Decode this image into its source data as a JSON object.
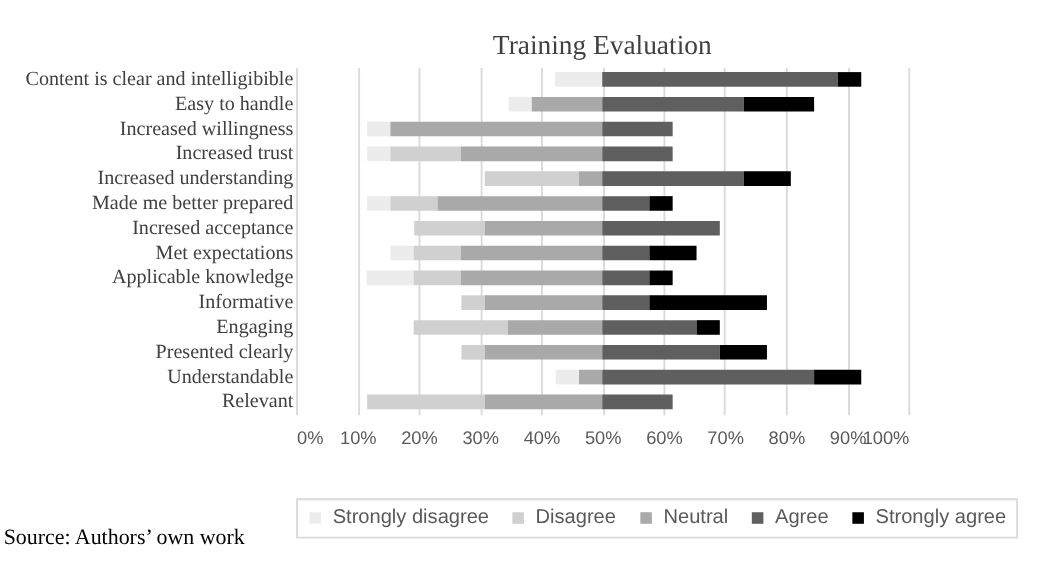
{
  "chart_data": {
    "type": "bar",
    "title": "Training Evaluation",
    "orientation": "horizontal",
    "categories": [
      "Content is clear and intelligibible",
      "Easy to handle",
      "Increased willingness",
      "Increased trust",
      "Increased understanding",
      "Made me better prepared",
      "Incresed acceptance",
      "Met expectations",
      "Applicable knowledge",
      "Informative",
      "Engaging",
      "Presented clearly",
      "Understandable",
      "Relevant"
    ],
    "series": [
      {
        "name": "Strongly disagree",
        "color": "#ececec",
        "values": [
          7.7,
          3.8,
          3.8,
          3.8,
          null,
          3.8,
          null,
          3.8,
          7.7,
          null,
          null,
          null,
          3.8,
          null
        ],
        "base": [
          42.3,
          34.7,
          11.6,
          11.6,
          null,
          11.6,
          null,
          15.4,
          11.5,
          null,
          null,
          null,
          42.4,
          null
        ]
      },
      {
        "name": "Disagree",
        "color": "#d0d0d0",
        "values": [
          null,
          null,
          null,
          11.5,
          15.4,
          7.7,
          11.5,
          7.7,
          7.7,
          3.8,
          15.4,
          3.8,
          null,
          19.2
        ],
        "base": [
          null,
          null,
          null,
          15.4,
          30.8,
          15.4,
          19.3,
          19.2,
          19.2,
          27.0,
          19.2,
          27.0,
          null,
          11.6
        ]
      },
      {
        "name": "Neutral",
        "color": "#a9a9a9",
        "values": [
          null,
          11.5,
          34.6,
          23.1,
          3.8,
          26.9,
          19.2,
          23.1,
          23.1,
          19.2,
          15.4,
          19.2,
          3.8,
          19.2
        ],
        "base": [
          null,
          38.5,
          15.4,
          26.9,
          46.2,
          23.1,
          30.8,
          26.9,
          26.9,
          30.8,
          34.6,
          30.8,
          46.2,
          30.8
        ]
      },
      {
        "name": "Agree",
        "color": "#5f5f5f",
        "values": [
          38.5,
          23.1,
          11.5,
          11.5,
          23.1,
          7.7,
          19.2,
          7.7,
          7.7,
          7.7,
          15.4,
          19.2,
          34.6,
          11.5
        ],
        "base": [
          50.0,
          50.0,
          50.0,
          50.0,
          50.0,
          50.0,
          50.0,
          50.0,
          50.0,
          50.0,
          50.0,
          50.0,
          50.0,
          50.0
        ]
      },
      {
        "name": "Strongly agree",
        "color": "#000000",
        "values": [
          3.8,
          11.5,
          null,
          null,
          7.7,
          3.8,
          null,
          7.7,
          3.8,
          19.2,
          3.8,
          7.7,
          7.7,
          null
        ],
        "base": [
          88.5,
          73.1,
          null,
          null,
          73.1,
          57.7,
          null,
          57.7,
          57.7,
          57.7,
          65.4,
          69.2,
          84.6,
          null
        ]
      }
    ],
    "xlim": [
      0,
      100
    ],
    "xticks": [
      {
        "value": 0,
        "label": "0%"
      },
      {
        "value": 10,
        "label": "10%"
      },
      {
        "value": 20,
        "label": "20%"
      },
      {
        "value": 30,
        "label": "30%"
      },
      {
        "value": 40,
        "label": "40%"
      },
      {
        "value": 50,
        "label": "50%"
      },
      {
        "value": 60,
        "label": "60%"
      },
      {
        "value": 70,
        "label": "70%"
      },
      {
        "value": 80,
        "label": "80%"
      },
      {
        "value": 90,
        "label": "90%"
      },
      {
        "value": 100,
        "label": "100%"
      }
    ],
    "grid": "x",
    "legend": "bottom",
    "annotations": [
      "Source: Authors’ own work"
    ]
  }
}
